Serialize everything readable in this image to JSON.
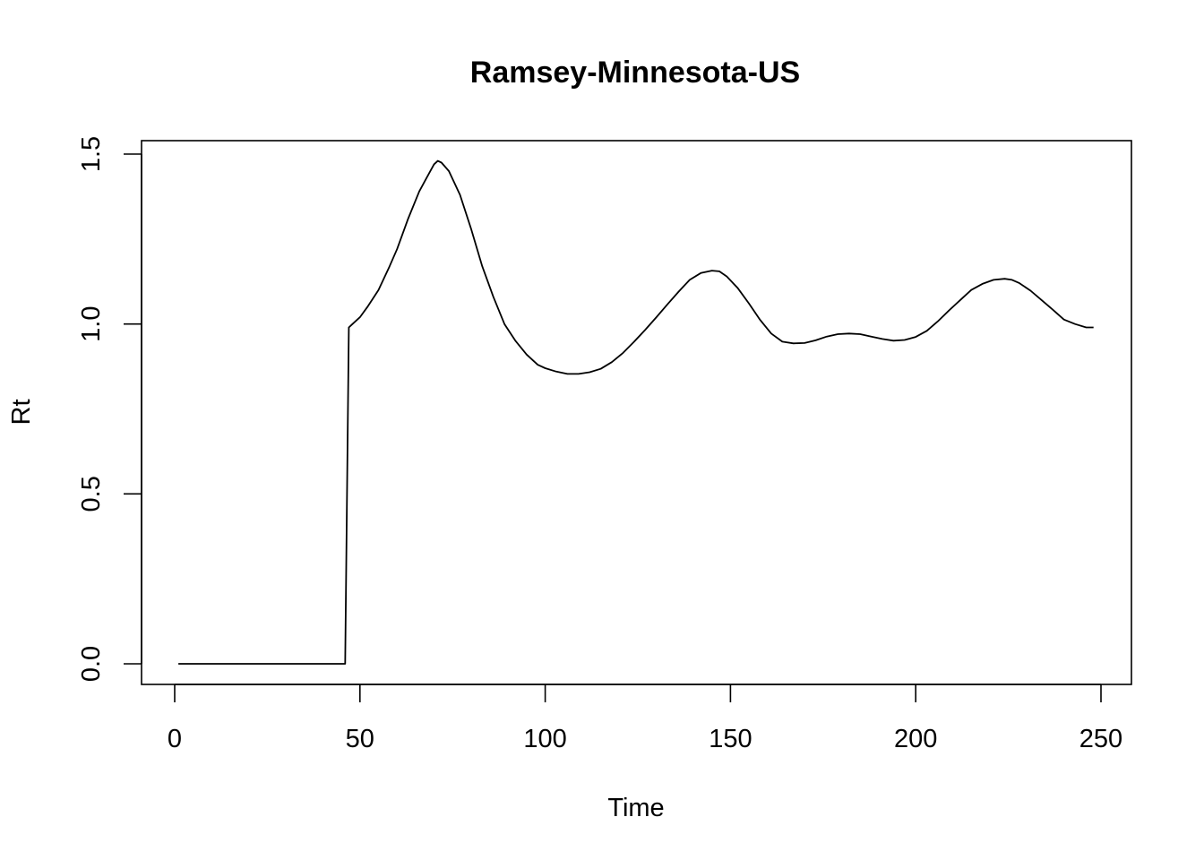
{
  "chart_data": {
    "type": "line",
    "title": "Ramsey-Minnesota-US",
    "xlabel": "Time",
    "ylabel": "Rt",
    "xlim": [
      1,
      248
    ],
    "ylim": [
      0,
      1.5
    ],
    "x_ticks": [
      0,
      50,
      100,
      150,
      200,
      250
    ],
    "x_tick_labels": [
      "0",
      "50",
      "100",
      "150",
      "200",
      "250"
    ],
    "y_ticks": [
      0,
      0.5,
      1.0,
      1.5
    ],
    "y_tick_labels": [
      "0.0",
      "0.5",
      "1.0",
      "1.5"
    ],
    "grid": false,
    "legend": "none",
    "series": [
      {
        "color": "#000000",
        "x": [
          1,
          10,
          20,
          30,
          40,
          46,
          47,
          48,
          50,
          52,
          55,
          58,
          60,
          63,
          66,
          68,
          70,
          71,
          72,
          74,
          77,
          80,
          83,
          86,
          89,
          92,
          95,
          98,
          100,
          103,
          106,
          109,
          112,
          115,
          118,
          121,
          124,
          127,
          130,
          133,
          136,
          139,
          142,
          145,
          147,
          149,
          152,
          155,
          158,
          161,
          164,
          167,
          170,
          173,
          176,
          179,
          182,
          185,
          188,
          191,
          194,
          197,
          200,
          203,
          206,
          209,
          212,
          215,
          218,
          221,
          224,
          226,
          228,
          231,
          234,
          237,
          240,
          243,
          246,
          248
        ],
        "y": [
          0.0,
          0.0,
          0.0,
          0.0,
          0.0,
          0.0,
          0.99,
          1.0,
          1.02,
          1.05,
          1.1,
          1.17,
          1.22,
          1.31,
          1.39,
          1.43,
          1.47,
          1.48,
          1.475,
          1.45,
          1.38,
          1.28,
          1.17,
          1.08,
          1.0,
          0.95,
          0.91,
          0.88,
          0.87,
          0.86,
          0.853,
          0.853,
          0.858,
          0.868,
          0.888,
          0.915,
          0.948,
          0.983,
          1.02,
          1.058,
          1.095,
          1.13,
          1.15,
          1.157,
          1.155,
          1.14,
          1.105,
          1.06,
          1.012,
          0.972,
          0.948,
          0.943,
          0.944,
          0.952,
          0.963,
          0.97,
          0.972,
          0.97,
          0.963,
          0.956,
          0.951,
          0.953,
          0.962,
          0.98,
          1.008,
          1.04,
          1.07,
          1.1,
          1.118,
          1.13,
          1.133,
          1.13,
          1.12,
          1.098,
          1.07,
          1.042,
          1.013,
          1.0,
          0.99,
          0.99
        ]
      }
    ]
  }
}
